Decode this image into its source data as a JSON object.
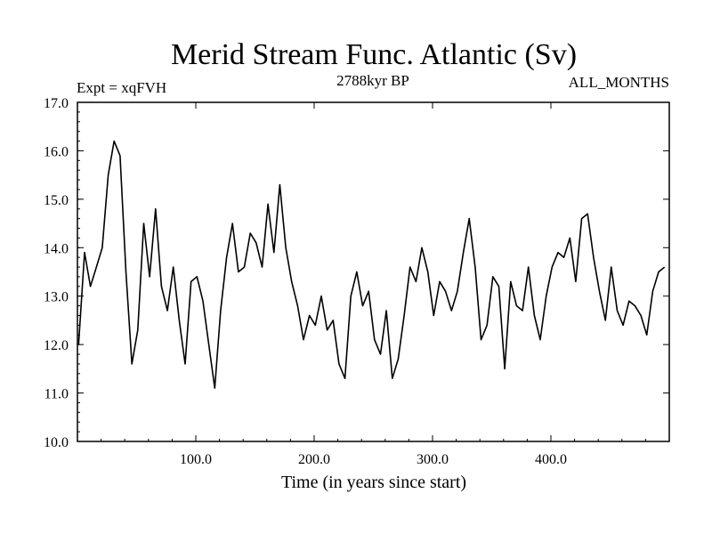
{
  "chart_data": {
    "type": "line",
    "title": "Merid Stream Func. Atlantic (Sv)",
    "subtitle_left": "Expt = xqFVH",
    "subtitle_center": "2788kyr BP",
    "subtitle_right": "ALL_MONTHS",
    "xlabel": "Time (in years since start)",
    "ylabel": "",
    "xlim": [
      0,
      500
    ],
    "ylim": [
      10.0,
      17.0
    ],
    "x_ticks": [
      100,
      200,
      300,
      400
    ],
    "x_tick_labels": [
      "100.0",
      "200.0",
      "300.0",
      "400.0"
    ],
    "y_ticks": [
      10,
      11,
      12,
      13,
      14,
      15,
      16,
      17
    ],
    "y_tick_labels": [
      "10.0",
      "11.0",
      "12.0",
      "13.0",
      "14.0",
      "15.0",
      "16.0",
      "17.0"
    ],
    "grid": false,
    "series": [
      {
        "name": "Merid Stream Func. Atlantic",
        "color": "#000000",
        "x_start": 1,
        "x_step": 5,
        "values": [
          12.0,
          13.9,
          13.2,
          13.6,
          14.0,
          15.5,
          16.2,
          15.9,
          13.5,
          11.6,
          12.3,
          14.5,
          13.4,
          14.8,
          13.2,
          12.7,
          13.6,
          12.5,
          11.6,
          13.3,
          13.4,
          12.9,
          12.0,
          11.1,
          12.7,
          13.8,
          14.5,
          13.5,
          13.6,
          14.3,
          14.1,
          13.6,
          14.9,
          13.9,
          15.3,
          14.0,
          13.3,
          12.8,
          12.1,
          12.6,
          12.4,
          13.0,
          12.3,
          12.5,
          11.6,
          11.3,
          13.0,
          13.5,
          12.8,
          13.1,
          12.1,
          11.8,
          12.7,
          11.3,
          11.7,
          12.6,
          13.6,
          13.3,
          14.0,
          13.5,
          12.6,
          13.3,
          13.1,
          12.7,
          13.1,
          13.9,
          14.6,
          13.6,
          12.1,
          12.4,
          13.4,
          13.2,
          11.5,
          13.3,
          12.8,
          12.7,
          13.6,
          12.6,
          12.1,
          13.0,
          13.6,
          13.9,
          13.8,
          14.2,
          13.3,
          14.6,
          14.7,
          13.8,
          13.1,
          12.5,
          13.6,
          12.7,
          12.4,
          12.9,
          12.8,
          12.6,
          12.2,
          13.1,
          13.5,
          13.6
        ]
      }
    ]
  }
}
